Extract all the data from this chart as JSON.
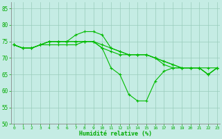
{
  "background_color": "#c5ece4",
  "grid_color": "#99ccbb",
  "line_color": "#00bb00",
  "marker_color": "#00bb00",
  "xlabel": "Humidité relative (%)",
  "xlabel_color": "#00aa00",
  "tick_color": "#00aa00",
  "ylim": [
    50,
    87
  ],
  "xlim": [
    -0.3,
    23.3
  ],
  "yticks": [
    50,
    55,
    60,
    65,
    70,
    75,
    80,
    85
  ],
  "xticks": [
    0,
    1,
    2,
    3,
    4,
    5,
    6,
    7,
    8,
    9,
    10,
    11,
    12,
    13,
    14,
    15,
    16,
    17,
    18,
    19,
    20,
    21,
    22,
    23
  ],
  "series": [
    [
      74,
      73,
      73,
      74,
      75,
      75,
      75,
      77,
      78,
      78,
      77,
      73,
      72,
      71,
      71,
      71,
      70,
      69,
      68,
      67,
      67,
      67,
      67,
      67
    ],
    [
      74,
      73,
      73,
      74,
      75,
      75,
      75,
      75,
      75,
      75,
      74,
      73,
      72,
      71,
      71,
      71,
      70,
      69,
      68,
      67,
      67,
      67,
      65,
      67
    ],
    [
      74,
      73,
      73,
      74,
      75,
      75,
      75,
      75,
      75,
      75,
      73,
      72,
      71,
      71,
      71,
      71,
      70,
      68,
      67,
      67,
      67,
      67,
      65,
      67
    ],
    [
      74,
      73,
      73,
      74,
      74,
      74,
      74,
      74,
      75,
      75,
      73,
      67,
      65,
      59,
      57,
      57,
      63,
      66,
      67,
      67,
      67,
      67,
      65,
      67
    ]
  ],
  "marker_series": [
    1,
    1,
    1,
    1
  ]
}
